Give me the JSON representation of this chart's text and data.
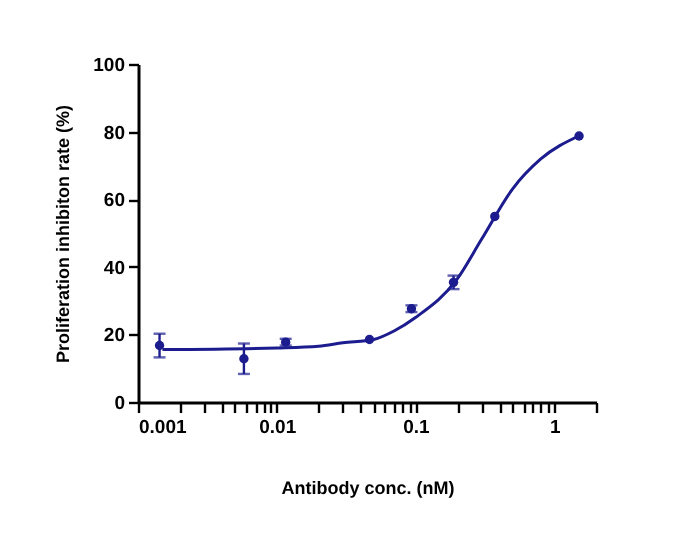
{
  "chart_data": {
    "type": "scatter",
    "xlabel": "Antibody conc. (nM)",
    "ylabel": "Proliferation inhibiton rate (%)",
    "log": "x",
    "grid": false,
    "xlim": [
      0.001,
      2
    ],
    "ylim": [
      0,
      100
    ],
    "xticks": [
      0.001,
      {
        "value": 0.002,
        "label": null
      },
      {
        "value": 0.003,
        "label": null
      },
      {
        "value": 0.004,
        "label": null
      },
      {
        "value": 0.005,
        "label": null
      },
      {
        "value": 0.006,
        "label": null
      },
      {
        "value": 0.007,
        "label": null
      },
      {
        "value": 0.008,
        "label": null
      },
      {
        "value": 0.009,
        "label": null
      },
      0.01,
      {
        "value": 0.02,
        "label": null
      },
      {
        "value": 0.03,
        "label": null
      },
      {
        "value": 0.04,
        "label": null
      },
      {
        "value": 0.05,
        "label": null
      },
      {
        "value": 0.06,
        "label": null
      },
      {
        "value": 0.07,
        "label": null
      },
      {
        "value": 0.08,
        "label": null
      },
      {
        "value": 0.09,
        "label": null
      },
      0.1,
      {
        "value": 0.2,
        "label": null
      },
      {
        "value": 0.3,
        "label": null
      },
      {
        "value": 0.4,
        "label": null
      },
      {
        "value": 0.5,
        "label": null
      },
      {
        "value": 0.6,
        "label": null
      },
      {
        "value": 0.7,
        "label": null
      },
      {
        "value": 0.8,
        "label": null
      },
      {
        "value": 0.9,
        "label": null
      },
      1,
      {
        "value": 2,
        "label": null
      }
    ],
    "yticks": [
      0,
      20,
      40,
      60,
      80,
      100
    ],
    "series": [
      {
        "color": "#1c1c8f",
        "marker": "circle",
        "x": [
          0.00143,
          0.0058,
          0.0116,
          0.0466,
          0.0935,
          0.188,
          0.373,
          1.51
        ],
        "values": [
          16.7,
          12.8,
          17.7,
          18.5,
          27.6,
          35.4,
          54.9,
          78.7
        ],
        "errors": [
          3.5,
          4.5,
          1,
          null,
          1,
          2,
          null,
          null
        ]
      },
      {
        "type": "line",
        "color": "#1c1c8f",
        "x": [
          0.0015,
          0.01,
          0.02,
          0.03,
          0.05,
          0.07,
          0.1,
          0.2,
          0.3,
          0.5,
          0.8,
          1.5
        ],
        "values": [
          15.5,
          16,
          16.5,
          17.5,
          18.5,
          21,
          25,
          36.4,
          48.2,
          63,
          71.9,
          78.7
        ]
      }
    ]
  }
}
